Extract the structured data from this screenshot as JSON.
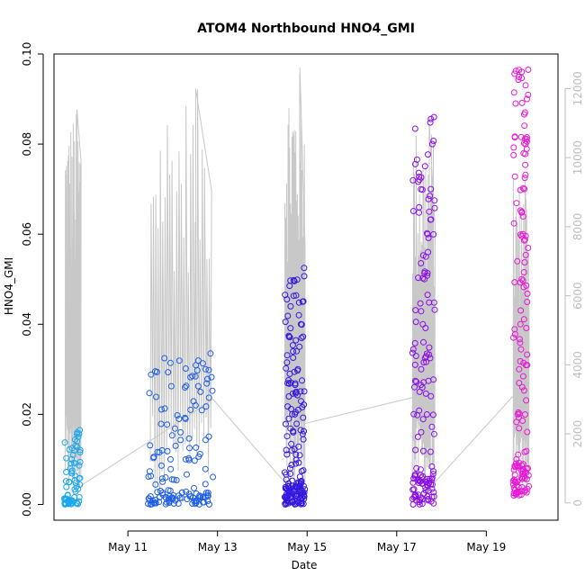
{
  "chart_data": {
    "type": "scatter",
    "title": "ATOM4 Northbound HNO4_GMI",
    "xlabel": "Date",
    "ylabel": "HNO4_GMI",
    "x_unit": "days (May 2017, fractional day of month)",
    "xlim": [
      9.35,
      20.6
    ],
    "ylim": [
      -0.0035,
      0.1
    ],
    "y_ticks": [
      0.0,
      0.02,
      0.04,
      0.06,
      0.08,
      0.1
    ],
    "y_tick_labels": [
      "0.00",
      "0.02",
      "0.04",
      "0.06",
      "0.08",
      "0.10"
    ],
    "x_ticks": [
      11,
      13,
      15,
      17,
      19
    ],
    "x_tick_labels": [
      "May 11",
      "May 13",
      "May 15",
      "May 17",
      "May 19"
    ],
    "y2_lim": [
      -500,
      13000
    ],
    "y2_ticks": [
      0,
      2000,
      4000,
      6000,
      8000,
      10000,
      12000
    ],
    "y2_tick_labels": [
      "0",
      "2000",
      "4000",
      "6000",
      "8000",
      "10000",
      "12000"
    ],
    "y2_color": "#bdbdbd",
    "grid": false,
    "series": [
      {
        "color": "#1aa7ee",
        "x_range": [
          9.58,
          9.94
        ],
        "y_values": [
          0.0,
          0.001,
          0.002,
          0.005,
          0.008,
          0.01,
          0.011,
          0.012,
          0.013,
          0.014,
          0.015,
          0.0165
        ]
      },
      {
        "color": "#1f5ee6",
        "x_range": [
          11.45,
          12.9
        ],
        "y_values": [
          0.0,
          0.001,
          0.003,
          0.006,
          0.01,
          0.013,
          0.016,
          0.019,
          0.021,
          0.022,
          0.025,
          0.03,
          0.0335
        ]
      },
      {
        "color": "#3417e0",
        "x_range": [
          14.5,
          14.95
        ],
        "y_values": [
          0.0,
          0.001,
          0.003,
          0.008,
          0.012,
          0.016,
          0.02,
          0.025,
          0.03,
          0.035,
          0.04,
          0.045,
          0.0525
        ]
      },
      {
        "color": "#8a0ee8",
        "x_range": [
          17.35,
          17.85
        ],
        "y_values": [
          0.0,
          0.002,
          0.008,
          0.015,
          0.025,
          0.03,
          0.04,
          0.05,
          0.055,
          0.06,
          0.065,
          0.07,
          0.08,
          0.086
        ]
      },
      {
        "color": "#e817d6",
        "x_range": [
          19.6,
          19.95
        ],
        "y_values": [
          0.002,
          0.005,
          0.01,
          0.02,
          0.03,
          0.04,
          0.05,
          0.06,
          0.07,
          0.08,
          0.09,
          0.0965
        ]
      }
    ],
    "altitude_series": {
      "color": "#c8c8c8",
      "axis": "right",
      "segments": [
        {
          "x_range": [
            9.6,
            9.95
          ],
          "peak": 11400
        },
        {
          "x_range": [
            11.5,
            12.85
          ],
          "peak": 12000
        },
        {
          "x_range": [
            14.5,
            14.95
          ],
          "peak": 12600
        },
        {
          "x_range": [
            17.35,
            17.85
          ],
          "peak": 11000
        },
        {
          "x_range": [
            19.6,
            19.95
          ],
          "peak": 9500
        }
      ],
      "transit_points": [
        [
          9.95,
          500
        ],
        [
          11.5,
          1800
        ],
        [
          12.9,
          3000
        ],
        [
          14.5,
          600
        ],
        [
          14.95,
          2300
        ],
        [
          17.35,
          3050
        ],
        [
          17.85,
          600
        ],
        [
          19.6,
          3100
        ]
      ]
    }
  }
}
